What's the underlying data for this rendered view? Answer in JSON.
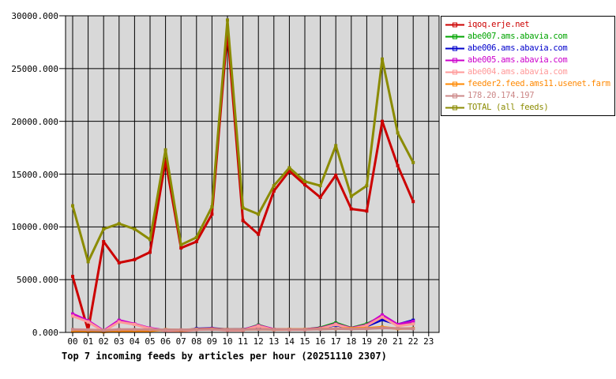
{
  "title": "Top 7 incoming feeds by articles per hour (20251110 2307)",
  "chart_data": {
    "type": "line",
    "xlabel": "",
    "ylabel": "",
    "ylim": [
      0,
      30000
    ],
    "grid": true,
    "plot_bg": "#d8d8d8",
    "legend_position": "outside-top-right",
    "y_ticks": [
      {
        "value": 0,
        "label": "0.000"
      },
      {
        "value": 5000,
        "label": "5000.000"
      },
      {
        "value": 10000,
        "label": "10000.000"
      },
      {
        "value": 15000,
        "label": "15000.000"
      },
      {
        "value": 20000,
        "label": "20000.000"
      },
      {
        "value": 25000,
        "label": "25000.000"
      },
      {
        "value": 30000,
        "label": "30000.000"
      }
    ],
    "x_tick_labels": [
      "00",
      "01",
      "02",
      "03",
      "04",
      "05",
      "06",
      "07",
      "08",
      "09",
      "10",
      "11",
      "12",
      "13",
      "14",
      "15",
      "16",
      "17",
      "18",
      "19",
      "20",
      "21",
      "22",
      "23"
    ],
    "hours_plotted": [
      "00",
      "01",
      "02",
      "03",
      "04",
      "05",
      "06",
      "07",
      "08",
      "09",
      "10",
      "11",
      "12",
      "13",
      "14",
      "15",
      "16",
      "17",
      "18",
      "19",
      "20",
      "21",
      "22"
    ],
    "series": [
      {
        "name": "iqoq.erje.net",
        "color": "#cc0000",
        "values": [
          5300,
          200,
          8600,
          6600,
          6900,
          7600,
          16300,
          8000,
          8600,
          11200,
          28600,
          10600,
          9300,
          13400,
          15300,
          14000,
          12800,
          14900,
          11700,
          11500,
          20000,
          15800,
          12400
        ]
      },
      {
        "name": "abe007.ams.abavia.com",
        "color": "#00a400",
        "values": [
          1700,
          1050,
          120,
          1100,
          780,
          380,
          180,
          130,
          280,
          320,
          230,
          230,
          700,
          280,
          280,
          280,
          450,
          900,
          420,
          800,
          1550,
          700,
          900
        ]
      },
      {
        "name": "abe006.ams.abavia.com",
        "color": "#0000cc",
        "values": [
          1700,
          1050,
          130,
          1080,
          770,
          370,
          170,
          120,
          350,
          380,
          280,
          300,
          500,
          300,
          280,
          280,
          380,
          700,
          380,
          600,
          1200,
          750,
          1150
        ]
      },
      {
        "name": "abe005.ams.abavia.com",
        "color": "#cc00cc",
        "values": [
          1750,
          1100,
          150,
          1150,
          800,
          400,
          200,
          150,
          300,
          350,
          250,
          250,
          650,
          300,
          300,
          300,
          400,
          800,
          400,
          700,
          1650,
          750,
          1050
        ]
      },
      {
        "name": "abe004.ams.abavia.com",
        "color": "#ff9999",
        "values": [
          1550,
          1000,
          100,
          1000,
          750,
          350,
          150,
          100,
          250,
          300,
          200,
          200,
          600,
          250,
          250,
          250,
          350,
          750,
          350,
          650,
          1450,
          600,
          800
        ]
      },
      {
        "name": "feeder2.feed.ams11.usenet.farm",
        "color": "#ff8800",
        "values": [
          100,
          80,
          60,
          100,
          120,
          150,
          280,
          220,
          300,
          320,
          280,
          280,
          300,
          280,
          300,
          300,
          320,
          350,
          380,
          400,
          500,
          350,
          380
        ]
      },
      {
        "name": "178.20.174.197",
        "color": "#cc8888",
        "values": [
          280,
          250,
          200,
          280,
          280,
          270,
          260,
          250,
          280,
          280,
          260,
          270,
          300,
          280,
          280,
          280,
          300,
          350,
          320,
          350,
          420,
          380,
          350
        ]
      },
      {
        "name": "TOTAL (all feeds)",
        "color": "#8b8b00",
        "values": [
          12000,
          6700,
          9800,
          10300,
          9800,
          8800,
          17300,
          8300,
          9000,
          11900,
          29600,
          11800,
          11200,
          13900,
          15600,
          14300,
          13900,
          17700,
          12900,
          13900,
          25900,
          18900,
          16100
        ]
      }
    ]
  }
}
